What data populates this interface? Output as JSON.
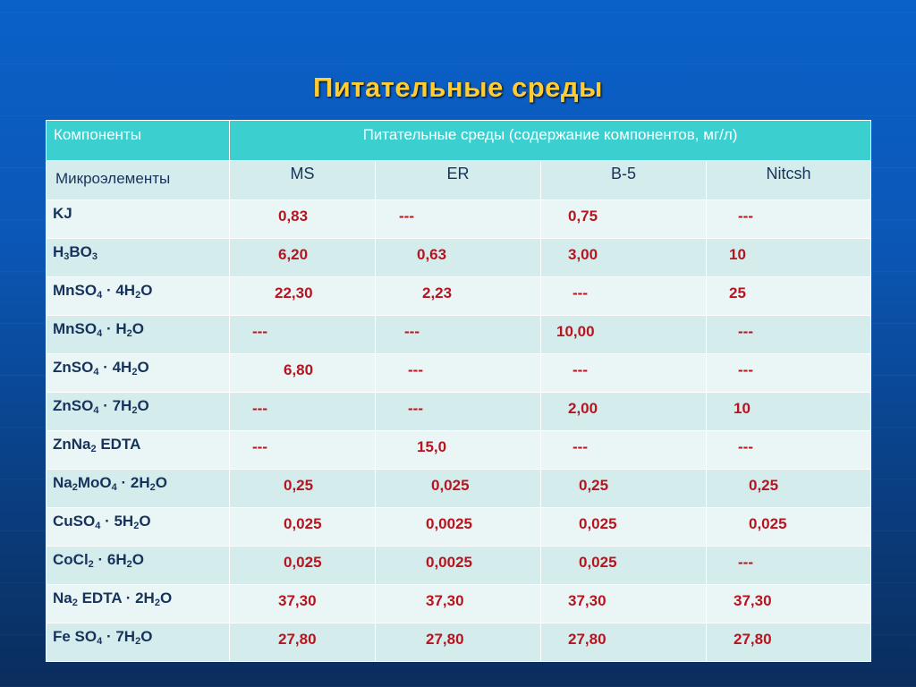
{
  "title": "Питательные среды",
  "header": {
    "components": "Компоненты",
    "media_desc": "Питательные среды (содержание компонентов, мг/л)",
    "microelements": "Микроэлементы",
    "media": [
      "MS",
      "ER",
      "B-5",
      "Nitcsh"
    ]
  },
  "rows": [
    {
      "name": [
        "KJ"
      ],
      "values": [
        "0,83",
        "---",
        "0,75",
        "---"
      ]
    },
    {
      "name": [
        "H",
        "3",
        "BO",
        "3"
      ],
      "values": [
        "6,20",
        "0,63",
        "3,00",
        "10"
      ]
    },
    {
      "name": [
        "MnSO",
        "4",
        " · 4H",
        "2",
        "O"
      ],
      "values": [
        "22,30",
        "2,23",
        "---",
        "25"
      ]
    },
    {
      "name": [
        "MnSO",
        "4",
        " · H",
        "2",
        "O"
      ],
      "values": [
        "---",
        "---",
        "10,00",
        "---"
      ]
    },
    {
      "name": [
        "ZnSO",
        "4",
        " · 4H",
        "2",
        "O"
      ],
      "values": [
        "6,80",
        "---",
        "---",
        "---"
      ]
    },
    {
      "name": [
        "ZnSO",
        "4",
        " · 7H",
        "2",
        "O"
      ],
      "values": [
        "---",
        "---",
        "2,00",
        "10"
      ]
    },
    {
      "name": [
        "ZnNa",
        "2",
        " EDTA"
      ],
      "values": [
        "---",
        "15,0",
        "---",
        "---"
      ]
    },
    {
      "name": [
        "Na",
        "2",
        "MoO",
        "4",
        " · 2H",
        "2",
        "O"
      ],
      "values": [
        "0,25",
        "0,025",
        "0,25",
        "0,25"
      ]
    },
    {
      "name": [
        "CuSO",
        "4",
        " · 5H",
        "2",
        "O"
      ],
      "values": [
        "0,025",
        "0,0025",
        "0,025",
        "0,025"
      ]
    },
    {
      "name": [
        "CoCl",
        "2",
        "  · 6H",
        "2",
        "O"
      ],
      "values": [
        "0,025",
        "0,0025",
        "0,025",
        "---"
      ]
    },
    {
      "name": [
        "Na",
        "2",
        " EDTA · 2H",
        "2",
        "O"
      ],
      "values": [
        "37,30",
        "37,30",
        "37,30",
        "37,30"
      ]
    },
    {
      "name": [
        "Fe SO",
        "4",
        " · 7H",
        "2",
        "O"
      ],
      "values": [
        "27,80",
        "27,80",
        "27,80",
        "27,80"
      ]
    }
  ]
}
